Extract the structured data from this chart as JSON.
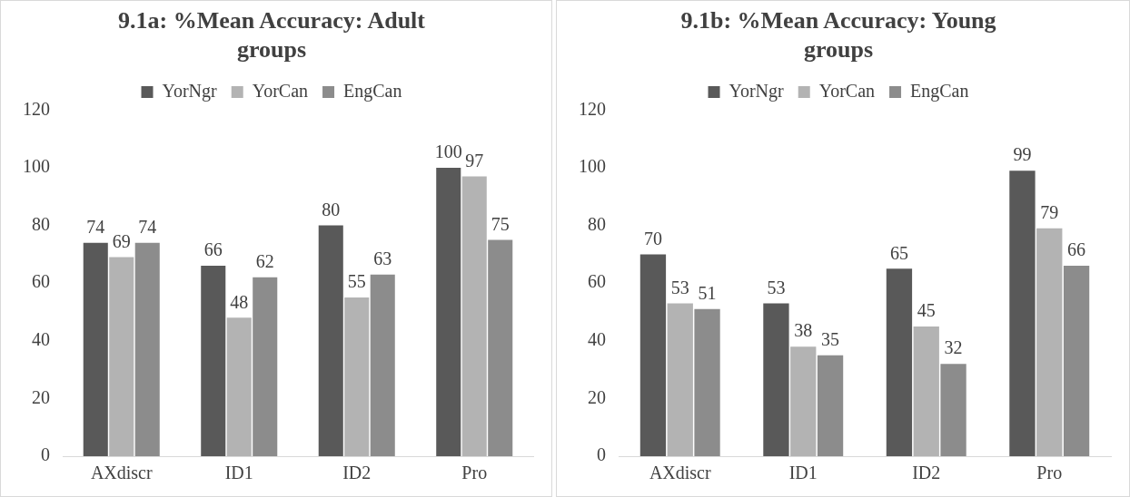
{
  "chart_data": [
    {
      "type": "bar",
      "title": "9.1a: %Mean Accuracy: Adult groups",
      "categories": [
        "AXdiscr",
        "ID1",
        "ID2",
        "Pro"
      ],
      "series": [
        {
          "name": "YorNgr",
          "color": "#595959",
          "values": [
            74,
            66,
            80,
            100
          ]
        },
        {
          "name": "YorCan",
          "color": "#b3b3b3",
          "values": [
            69,
            48,
            55,
            97
          ]
        },
        {
          "name": "EngCan",
          "color": "#8c8c8c",
          "values": [
            74,
            62,
            63,
            75
          ]
        }
      ],
      "ylim": [
        0,
        120
      ],
      "yticks": [
        0,
        20,
        40,
        60,
        80,
        100,
        120
      ],
      "grid": false,
      "legend": "top",
      "data_labels": true
    },
    {
      "type": "bar",
      "title": "9.1b: %Mean Accuracy: Young groups",
      "categories": [
        "AXdiscr",
        "ID1",
        "ID2",
        "Pro"
      ],
      "series": [
        {
          "name": "YorNgr",
          "color": "#595959",
          "values": [
            70,
            53,
            65,
            99
          ]
        },
        {
          "name": "YorCan",
          "color": "#b3b3b3",
          "values": [
            53,
            38,
            45,
            79
          ]
        },
        {
          "name": "EngCan",
          "color": "#8c8c8c",
          "values": [
            51,
            35,
            32,
            66
          ]
        }
      ],
      "ylim": [
        0,
        120
      ],
      "yticks": [
        0,
        20,
        40,
        60,
        80,
        100,
        120
      ],
      "grid": false,
      "legend": "top",
      "data_labels": true
    }
  ]
}
